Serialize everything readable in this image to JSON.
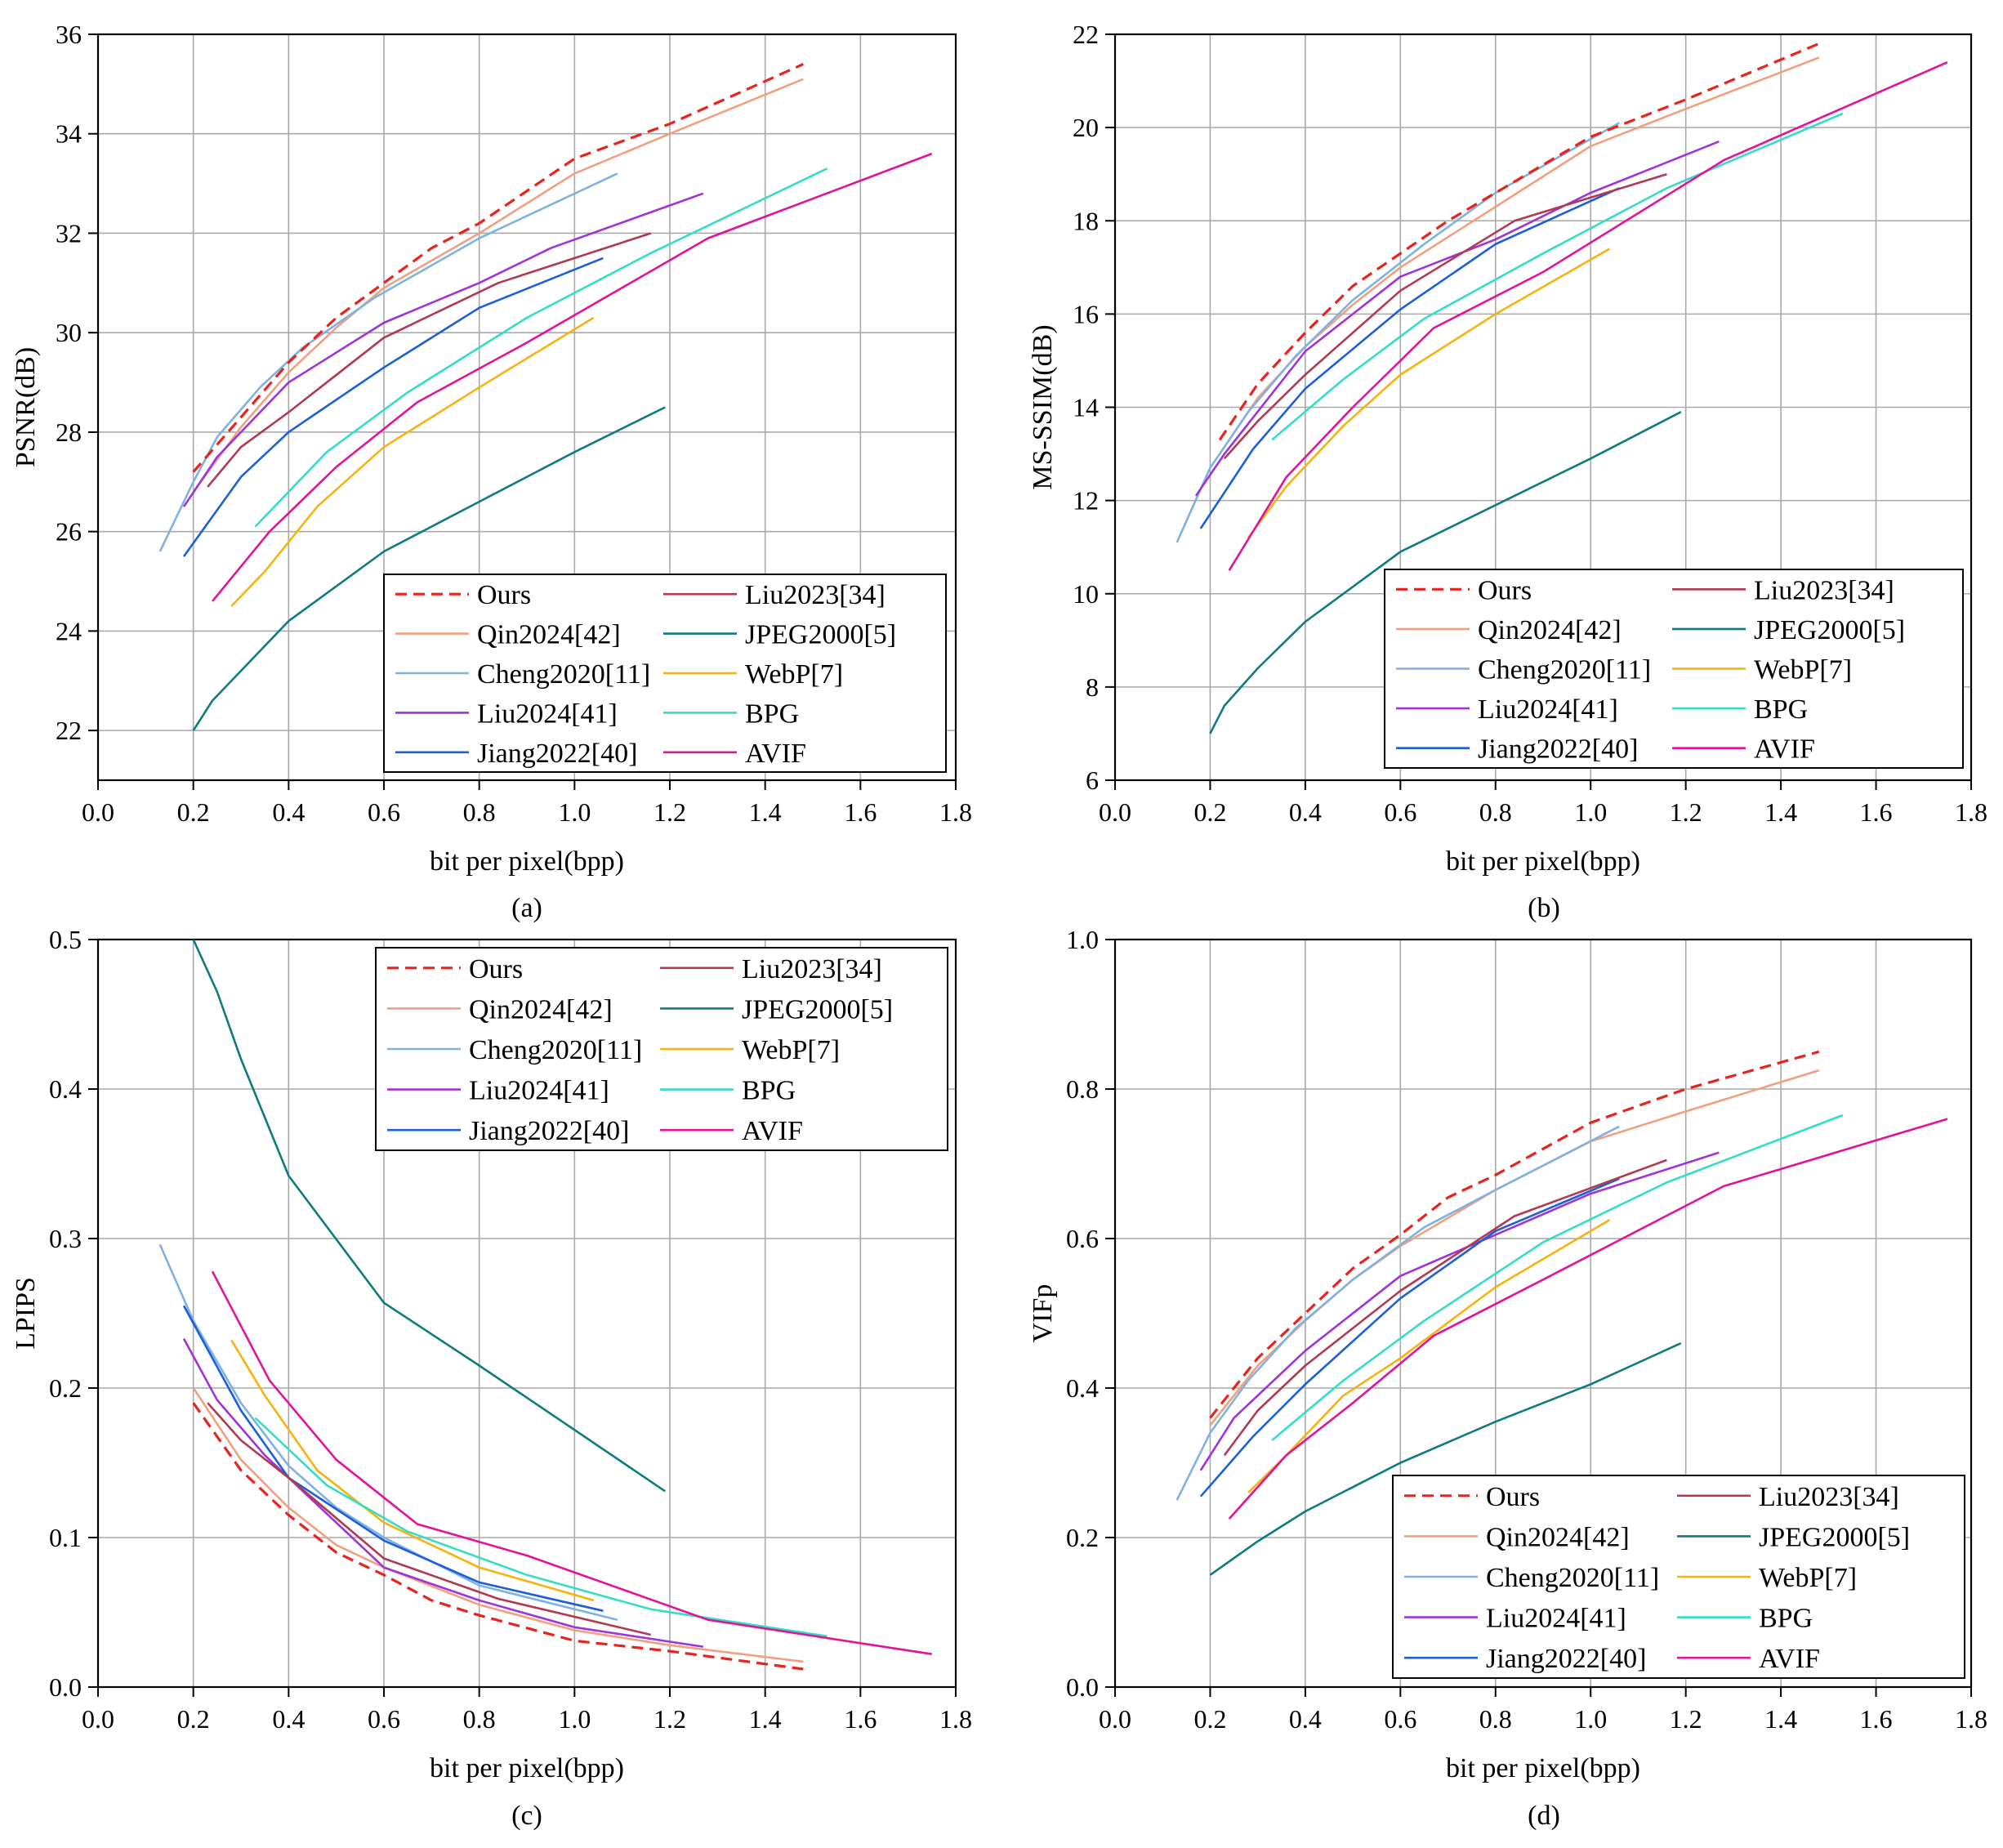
{
  "colors": {
    "Ours": "#e8231e",
    "Qin2024[42]": "#f0a080",
    "Cheng2020[11]": "#7fb2e0",
    "Liu2024[41]": "#a033d6",
    "Jiang2022[40]": "#1c5fd8",
    "Liu2023[34]": "#b03a52",
    "JPEG2000[5]": "#0f7a80",
    "WebP[7]": "#f5b30f",
    "BPG": "#35dcc6",
    "AVIF": "#e0139a"
  },
  "chart_data": [
    {
      "type": "line",
      "panel": "(a)",
      "xlabel": "bit per pixel(bpp)",
      "ylabel": "PSNR(dB)",
      "xlim": [
        0,
        1.8
      ],
      "ylim": [
        21,
        36
      ],
      "xticks": [
        "0.0",
        "0.2",
        "0.4",
        "0.6",
        "0.8",
        "1.0",
        "1.2",
        "1.4",
        "1.6",
        "1.8"
      ],
      "yticks": [
        "22",
        "24",
        "26",
        "28",
        "30",
        "32",
        "34",
        "36"
      ],
      "legend_position": "bottom-right",
      "legend_order": [
        "Ours",
        "Liu2023[34]",
        "Qin2024[42]",
        "JPEG2000[5]",
        "Cheng2020[11]",
        "WebP[7]",
        "Liu2024[41]",
        "BPG",
        "Jiang2022[40]",
        "AVIF"
      ],
      "series": [
        {
          "name": "Ours",
          "dashed": true,
          "x": [
            0.2,
            0.3,
            0.4,
            0.5,
            0.6,
            0.7,
            0.8,
            1.0,
            1.2,
            1.48
          ],
          "y": [
            27.2,
            28.3,
            29.4,
            30.3,
            31.0,
            31.7,
            32.2,
            33.5,
            34.2,
            35.4
          ]
        },
        {
          "name": "Qin2024[42]",
          "x": [
            0.2,
            0.3,
            0.4,
            0.5,
            0.6,
            0.8,
            1.0,
            1.2,
            1.48
          ],
          "y": [
            26.8,
            28.1,
            29.2,
            30.1,
            30.9,
            32.0,
            33.2,
            34.0,
            35.1
          ]
        },
        {
          "name": "Cheng2020[11]",
          "x": [
            0.13,
            0.2,
            0.25,
            0.34,
            0.43,
            0.58,
            0.8,
            1.09
          ],
          "y": [
            25.6,
            27.0,
            27.9,
            28.9,
            29.7,
            30.7,
            31.9,
            33.2
          ]
        },
        {
          "name": "Liu2024[41]",
          "x": [
            0.18,
            0.25,
            0.4,
            0.6,
            0.8,
            0.95,
            1.27
          ],
          "y": [
            26.5,
            27.5,
            29.0,
            30.2,
            31.0,
            31.7,
            32.8
          ]
        },
        {
          "name": "Jiang2022[40]",
          "x": [
            0.18,
            0.3,
            0.4,
            0.6,
            0.8,
            1.06
          ],
          "y": [
            25.5,
            27.1,
            28.0,
            29.3,
            30.5,
            31.5
          ]
        },
        {
          "name": "Liu2023[34]",
          "x": [
            0.23,
            0.3,
            0.4,
            0.6,
            0.84,
            1.16
          ],
          "y": [
            26.9,
            27.7,
            28.4,
            29.9,
            31.0,
            32.0
          ]
        },
        {
          "name": "JPEG2000[5]",
          "x": [
            0.2,
            0.24,
            0.3,
            0.4,
            0.6,
            0.8,
            1.0,
            1.19
          ],
          "y": [
            22.0,
            22.6,
            23.2,
            24.2,
            25.6,
            26.6,
            27.6,
            28.5
          ]
        },
        {
          "name": "WebP[7]",
          "x": [
            0.28,
            0.35,
            0.46,
            0.6,
            0.8,
            1.04
          ],
          "y": [
            24.5,
            25.2,
            26.5,
            27.7,
            28.9,
            30.3
          ]
        },
        {
          "name": "BPG",
          "x": [
            0.33,
            0.48,
            0.65,
            0.9,
            1.16,
            1.53
          ],
          "y": [
            26.1,
            27.6,
            28.8,
            30.3,
            31.6,
            33.3
          ]
        },
        {
          "name": "AVIF",
          "x": [
            0.24,
            0.36,
            0.5,
            0.67,
            0.9,
            1.28,
            1.75
          ],
          "y": [
            24.6,
            26.0,
            27.3,
            28.6,
            29.8,
            31.9,
            33.6
          ]
        }
      ]
    },
    {
      "type": "line",
      "panel": "(b)",
      "xlabel": "bit per pixel(bpp)",
      "ylabel": "MS-SSIM(dB)",
      "xlim": [
        0,
        1.8
      ],
      "ylim": [
        6,
        22
      ],
      "xticks": [
        "0.0",
        "0.2",
        "0.4",
        "0.6",
        "0.8",
        "1.0",
        "1.2",
        "1.4",
        "1.6",
        "1.8"
      ],
      "yticks": [
        "6",
        "8",
        "10",
        "12",
        "14",
        "16",
        "18",
        "20",
        "22"
      ],
      "legend_position": "bottom-right",
      "legend_order": [
        "Ours",
        "Liu2023[34]",
        "Qin2024[42]",
        "JPEG2000[5]",
        "Cheng2020[11]",
        "WebP[7]",
        "Liu2024[41]",
        "BPG",
        "Jiang2022[40]",
        "AVIF"
      ],
      "series": [
        {
          "name": "Ours",
          "dashed": true,
          "x": [
            0.22,
            0.3,
            0.4,
            0.5,
            0.6,
            0.7,
            0.8,
            1.0,
            1.2,
            1.48
          ],
          "y": [
            13.3,
            14.5,
            15.6,
            16.6,
            17.3,
            18.0,
            18.6,
            19.8,
            20.6,
            21.8
          ]
        },
        {
          "name": "Qin2024[42]",
          "x": [
            0.22,
            0.3,
            0.4,
            0.5,
            0.6,
            0.8,
            1.0,
            1.2,
            1.48
          ],
          "y": [
            13.0,
            14.2,
            15.3,
            16.2,
            17.0,
            18.3,
            19.6,
            20.4,
            21.5
          ]
        },
        {
          "name": "Cheng2020[11]",
          "x": [
            0.13,
            0.2,
            0.28,
            0.38,
            0.5,
            0.65,
            0.8,
            1.06
          ],
          "y": [
            11.1,
            12.7,
            13.9,
            15.1,
            16.3,
            17.5,
            18.6,
            20.1
          ]
        },
        {
          "name": "Liu2024[41]",
          "x": [
            0.17,
            0.23,
            0.4,
            0.6,
            0.8,
            1.0,
            1.27
          ],
          "y": [
            12.1,
            13.0,
            15.2,
            16.8,
            17.6,
            18.6,
            19.7
          ]
        },
        {
          "name": "Jiang2022[40]",
          "x": [
            0.18,
            0.29,
            0.4,
            0.6,
            0.8,
            1.06
          ],
          "y": [
            11.4,
            13.1,
            14.4,
            16.1,
            17.5,
            18.7
          ]
        },
        {
          "name": "Liu2023[34]",
          "x": [
            0.23,
            0.3,
            0.4,
            0.6,
            0.84,
            1.16
          ],
          "y": [
            12.9,
            13.7,
            14.7,
            16.5,
            18.0,
            19.0
          ]
        },
        {
          "name": "JPEG2000[5]",
          "x": [
            0.2,
            0.23,
            0.3,
            0.4,
            0.6,
            0.8,
            1.0,
            1.19
          ],
          "y": [
            7.0,
            7.6,
            8.4,
            9.4,
            10.9,
            11.9,
            12.9,
            13.9
          ]
        },
        {
          "name": "WebP[7]",
          "x": [
            0.28,
            0.36,
            0.48,
            0.6,
            0.8,
            1.04
          ],
          "y": [
            11.2,
            12.3,
            13.6,
            14.7,
            16.0,
            17.4
          ]
        },
        {
          "name": "BPG",
          "x": [
            0.33,
            0.48,
            0.65,
            0.9,
            1.16,
            1.53
          ],
          "y": [
            13.3,
            14.6,
            15.9,
            17.3,
            18.7,
            20.3
          ]
        },
        {
          "name": "AVIF",
          "x": [
            0.24,
            0.36,
            0.5,
            0.67,
            0.9,
            1.28,
            1.75
          ],
          "y": [
            10.5,
            12.5,
            14.0,
            15.7,
            16.9,
            19.3,
            21.4
          ]
        }
      ]
    },
    {
      "type": "line",
      "panel": "(c)",
      "xlabel": "bit per pixel(bpp)",
      "ylabel": "LPIPS",
      "xlim": [
        0,
        1.8
      ],
      "ylim": [
        0,
        0.5
      ],
      "xticks": [
        "0.0",
        "0.2",
        "0.4",
        "0.6",
        "0.8",
        "1.0",
        "1.2",
        "1.4",
        "1.6",
        "1.8"
      ],
      "yticks": [
        "0.0",
        "0.1",
        "0.2",
        "0.3",
        "0.4",
        "0.5"
      ],
      "legend_position": "top-right",
      "legend_order": [
        "Ours",
        "Liu2023[34]",
        "Qin2024[42]",
        "JPEG2000[5]",
        "Cheng2020[11]",
        "WebP[7]",
        "Liu2024[41]",
        "BPG",
        "Jiang2022[40]",
        "AVIF"
      ],
      "series": [
        {
          "name": "Ours",
          "dashed": true,
          "x": [
            0.2,
            0.3,
            0.4,
            0.5,
            0.6,
            0.7,
            0.8,
            1.0,
            1.2,
            1.48
          ],
          "y": [
            0.19,
            0.145,
            0.115,
            0.09,
            0.075,
            0.058,
            0.048,
            0.031,
            0.024,
            0.012
          ]
        },
        {
          "name": "Qin2024[42]",
          "x": [
            0.2,
            0.3,
            0.4,
            0.5,
            0.6,
            0.8,
            1.0,
            1.2,
            1.48
          ],
          "y": [
            0.2,
            0.152,
            0.12,
            0.095,
            0.08,
            0.055,
            0.038,
            0.028,
            0.017
          ]
        },
        {
          "name": "Cheng2020[11]",
          "x": [
            0.13,
            0.2,
            0.3,
            0.4,
            0.5,
            0.6,
            0.8,
            1.09
          ],
          "y": [
            0.296,
            0.245,
            0.19,
            0.148,
            0.12,
            0.1,
            0.068,
            0.045
          ]
        },
        {
          "name": "Liu2024[41]",
          "x": [
            0.18,
            0.25,
            0.35,
            0.45,
            0.6,
            0.8,
            1.0,
            1.27
          ],
          "y": [
            0.233,
            0.192,
            0.155,
            0.125,
            0.08,
            0.058,
            0.04,
            0.027
          ]
        },
        {
          "name": "Jiang2022[40]",
          "x": [
            0.18,
            0.3,
            0.4,
            0.6,
            0.8,
            1.06
          ],
          "y": [
            0.255,
            0.185,
            0.14,
            0.098,
            0.07,
            0.051
          ]
        },
        {
          "name": "Liu2023[34]",
          "x": [
            0.23,
            0.3,
            0.4,
            0.6,
            0.84,
            1.16
          ],
          "y": [
            0.19,
            0.165,
            0.14,
            0.086,
            0.059,
            0.035
          ]
        },
        {
          "name": "JPEG2000[5]",
          "x": [
            0.2,
            0.25,
            0.3,
            0.4,
            0.6,
            0.8,
            1.0,
            1.19
          ],
          "y": [
            0.5,
            0.465,
            0.42,
            0.342,
            0.257,
            0.215,
            0.172,
            0.131
          ]
        },
        {
          "name": "WebP[7]",
          "x": [
            0.28,
            0.35,
            0.46,
            0.6,
            0.8,
            1.04
          ],
          "y": [
            0.232,
            0.195,
            0.145,
            0.11,
            0.08,
            0.058
          ]
        },
        {
          "name": "BPG",
          "x": [
            0.33,
            0.48,
            0.65,
            0.9,
            1.16,
            1.53
          ],
          "y": [
            0.18,
            0.135,
            0.104,
            0.075,
            0.052,
            0.034
          ]
        },
        {
          "name": "AVIF",
          "x": [
            0.24,
            0.36,
            0.5,
            0.67,
            0.9,
            1.28,
            1.75
          ],
          "y": [
            0.278,
            0.205,
            0.152,
            0.109,
            0.088,
            0.045,
            0.022
          ]
        }
      ]
    },
    {
      "type": "line",
      "panel": "(d)",
      "xlabel": "bit per pixel(bpp)",
      "ylabel": "VIFp",
      "xlim": [
        0,
        1.8
      ],
      "ylim": [
        0,
        1.0
      ],
      "xticks": [
        "0.0",
        "0.2",
        "0.4",
        "0.6",
        "0.8",
        "1.0",
        "1.2",
        "1.4",
        "1.6",
        "1.8"
      ],
      "yticks": [
        "0.0",
        "0.2",
        "0.4",
        "0.6",
        "0.8",
        "1.0"
      ],
      "legend_position": "bottom-right",
      "legend_order": [
        "Ours",
        "Liu2023[34]",
        "Qin2024[42]",
        "JPEG2000[5]",
        "Cheng2020[11]",
        "WebP[7]",
        "Liu2024[41]",
        "BPG",
        "Jiang2022[40]",
        "AVIF"
      ],
      "series": [
        {
          "name": "Ours",
          "dashed": true,
          "x": [
            0.2,
            0.3,
            0.4,
            0.5,
            0.6,
            0.7,
            0.8,
            1.0,
            1.2,
            1.48
          ],
          "y": [
            0.36,
            0.44,
            0.5,
            0.56,
            0.605,
            0.655,
            0.685,
            0.755,
            0.8,
            0.85
          ]
        },
        {
          "name": "Qin2024[42]",
          "x": [
            0.2,
            0.3,
            0.4,
            0.5,
            0.6,
            0.8,
            1.0,
            1.2,
            1.48
          ],
          "y": [
            0.35,
            0.43,
            0.49,
            0.545,
            0.59,
            0.665,
            0.73,
            0.77,
            0.825
          ]
        },
        {
          "name": "Cheng2020[11]",
          "x": [
            0.13,
            0.2,
            0.28,
            0.38,
            0.5,
            0.65,
            0.8,
            1.06
          ],
          "y": [
            0.25,
            0.34,
            0.41,
            0.48,
            0.545,
            0.615,
            0.665,
            0.75
          ]
        },
        {
          "name": "Liu2024[41]",
          "x": [
            0.18,
            0.25,
            0.4,
            0.6,
            0.8,
            1.0,
            1.27
          ],
          "y": [
            0.29,
            0.36,
            0.45,
            0.55,
            0.605,
            0.66,
            0.715
          ]
        },
        {
          "name": "Jiang2022[40]",
          "x": [
            0.18,
            0.29,
            0.4,
            0.6,
            0.8,
            1.06
          ],
          "y": [
            0.255,
            0.335,
            0.405,
            0.52,
            0.61,
            0.68
          ]
        },
        {
          "name": "Liu2023[34]",
          "x": [
            0.23,
            0.3,
            0.4,
            0.6,
            0.84,
            1.16
          ],
          "y": [
            0.31,
            0.37,
            0.43,
            0.53,
            0.63,
            0.705
          ]
        },
        {
          "name": "JPEG2000[5]",
          "x": [
            0.2,
            0.3,
            0.4,
            0.6,
            0.8,
            1.0,
            1.19
          ],
          "y": [
            0.15,
            0.195,
            0.235,
            0.3,
            0.355,
            0.405,
            0.46
          ]
        },
        {
          "name": "WebP[7]",
          "x": [
            0.28,
            0.36,
            0.48,
            0.6,
            0.8,
            1.04
          ],
          "y": [
            0.26,
            0.31,
            0.39,
            0.44,
            0.535,
            0.625
          ]
        },
        {
          "name": "BPG",
          "x": [
            0.33,
            0.48,
            0.65,
            0.9,
            1.16,
            1.53
          ],
          "y": [
            0.33,
            0.41,
            0.49,
            0.595,
            0.675,
            0.765
          ]
        },
        {
          "name": "AVIF",
          "x": [
            0.24,
            0.36,
            0.5,
            0.67,
            0.9,
            1.28,
            1.75
          ],
          "y": [
            0.225,
            0.31,
            0.38,
            0.47,
            0.545,
            0.67,
            0.76
          ]
        }
      ]
    }
  ]
}
